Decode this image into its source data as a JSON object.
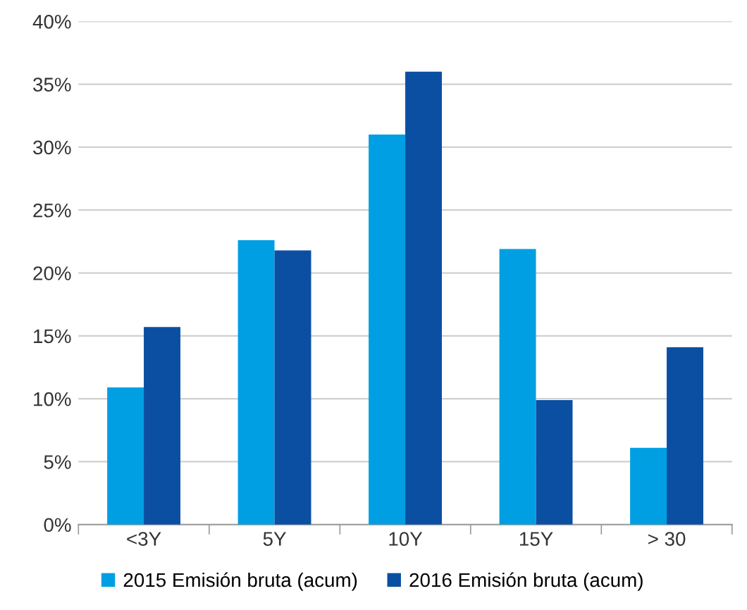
{
  "chart_data": {
    "type": "bar",
    "categories": [
      "<3Y",
      "5Y",
      "10Y",
      "15Y",
      "> 30"
    ],
    "series": [
      {
        "name": "2015 Emisión bruta (acum)",
        "color": "#009fe3",
        "values": [
          10.9,
          22.6,
          31.0,
          21.9,
          6.1
        ]
      },
      {
        "name": "2016 Emisión bruta (acum)",
        "color": "#0b4fa3",
        "values": [
          15.7,
          21.8,
          36.0,
          9.9,
          14.1
        ]
      }
    ],
    "ylim": [
      0,
      40
    ],
    "yticks": [
      {
        "value": 0,
        "label": "0%"
      },
      {
        "value": 5,
        "label": "5%"
      },
      {
        "value": 10,
        "label": "10%"
      },
      {
        "value": 15,
        "label": "15%"
      },
      {
        "value": 20,
        "label": "20%"
      },
      {
        "value": 25,
        "label": "25%"
      },
      {
        "value": 30,
        "label": "30%"
      },
      {
        "value": 35,
        "label": "35%"
      },
      {
        "value": 40,
        "label": "40%"
      }
    ],
    "grid": "y",
    "legend": "bottom"
  }
}
